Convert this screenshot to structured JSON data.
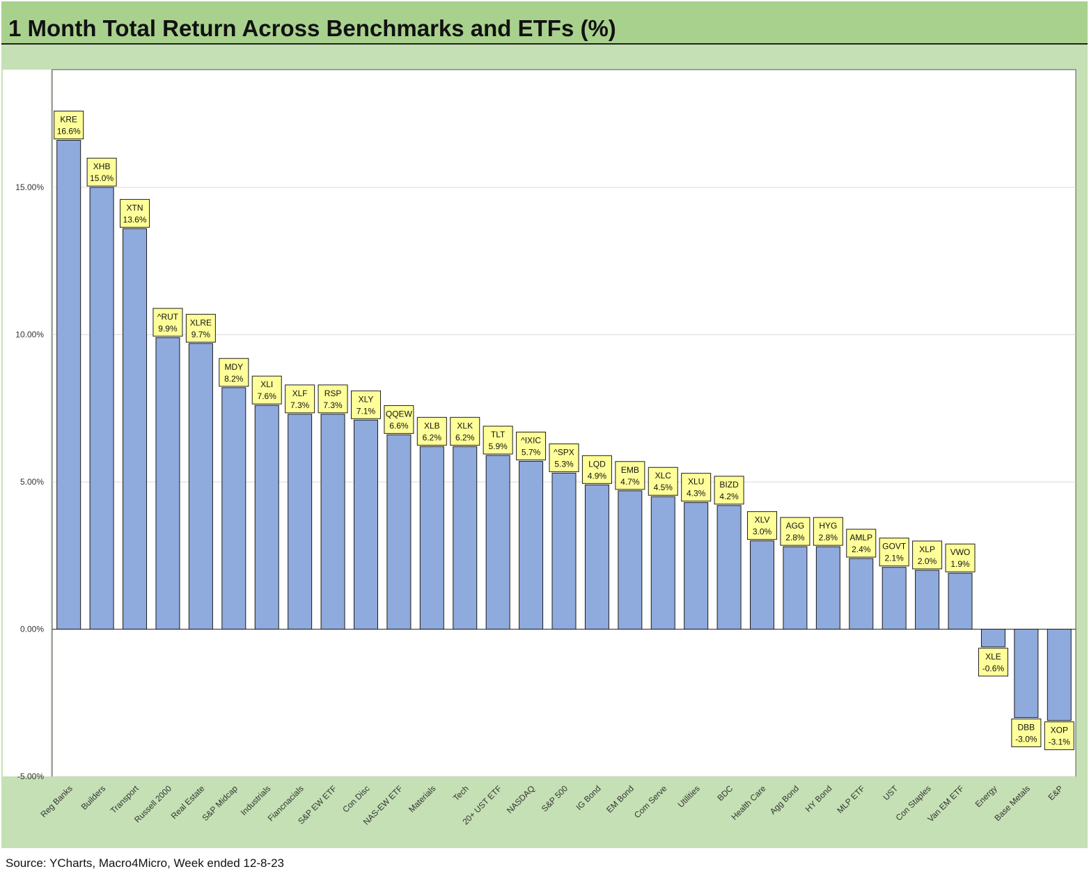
{
  "title": "1 Month Total Return Across Benchmarks and ETFs (%)",
  "source": "Source: YCharts, Macro4Micro, Week ended 12-8-23",
  "colors": {
    "title_background": "#a9d18e",
    "chart_background": "#c5e0b4",
    "plot_background": "#ffffff",
    "bar_fill": "#8faadc",
    "bar_stroke": "#1a1a1a",
    "label_fill": "#ffff99"
  },
  "chart_data": {
    "type": "bar",
    "categories": [
      "Reg Banks",
      "Builders",
      "Transport",
      "Russell 2000",
      "Real Estate",
      "S&P Midcap",
      "Industrials",
      "Fiancnacials",
      "S&P EW ETF",
      "Con Disc",
      "NAS-EW ETF",
      "Materials",
      "Tech",
      "20+ UST ETF",
      "NASDAQ",
      "S&P 500",
      "IG Bond",
      "EM Bond",
      "Com Serve",
      "Utilities",
      "BDC",
      "Health Care",
      "Agg Bond",
      "HY Bond",
      "MLP ETF",
      "UST",
      "Con Staples",
      "Van EM ETF",
      "Energy",
      "Base Metals",
      "E&P"
    ],
    "tickers": [
      "KRE",
      "XHB",
      "XTN",
      "^RUT",
      "XLRE",
      "MDY",
      "XLI",
      "XLF",
      "RSP",
      "XLY",
      "QQEW",
      "XLB",
      "XLK",
      "TLT",
      "^IXIC",
      "^SPX",
      "LQD",
      "EMB",
      "XLC",
      "XLU",
      "BIZD",
      "XLV",
      "AGG",
      "HYG",
      "AMLP",
      "GOVT",
      "XLP",
      "VWO",
      "XLE",
      "DBB",
      "XOP"
    ],
    "values": [
      16.6,
      15.0,
      13.6,
      9.9,
      9.7,
      8.2,
      7.6,
      7.3,
      7.3,
      7.1,
      6.6,
      6.2,
      6.2,
      5.9,
      5.7,
      5.3,
      4.9,
      4.7,
      4.5,
      4.3,
      4.2,
      3.0,
      2.8,
      2.8,
      2.4,
      2.1,
      2.0,
      1.9,
      -0.6,
      -3.0,
      -3.1
    ],
    "data_labels": [
      "16.6%",
      "15.0%",
      "13.6%",
      "9.9%",
      "9.7%",
      "8.2%",
      "7.6%",
      "7.3%",
      "7.3%",
      "7.1%",
      "6.6%",
      "6.2%",
      "6.2%",
      "5.9%",
      "5.7%",
      "5.3%",
      "4.9%",
      "4.7%",
      "4.5%",
      "4.3%",
      "4.2%",
      "3.0%",
      "2.8%",
      "2.8%",
      "2.4%",
      "2.1%",
      "2.0%",
      "1.9%",
      "-0.6%",
      "-3.0%",
      "-3.1%"
    ],
    "ylim": [
      -5,
      19
    ],
    "yticks": [
      -5,
      0,
      5,
      10,
      15
    ],
    "ytick_labels": [
      "-5.00%",
      "0.00%",
      "5.00%",
      "10.00%",
      "15.00%"
    ],
    "grid": true,
    "legend": "none",
    "xlabel": "",
    "ylabel": ""
  }
}
